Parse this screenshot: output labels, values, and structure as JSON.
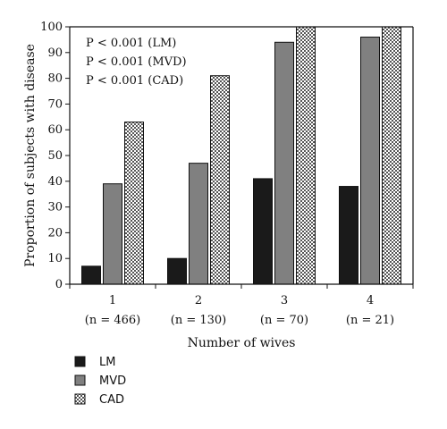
{
  "chart_data": {
    "type": "bar",
    "title": "",
    "xlabel": "Number of wives",
    "ylabel": "Proportion of subjects with disease",
    "ylim": [
      0,
      100
    ],
    "yticks": [
      0,
      10,
      20,
      30,
      40,
      50,
      60,
      70,
      80,
      90,
      100
    ],
    "grid": false,
    "legend_position": "bottom-left",
    "categories": [
      "1",
      "2",
      "3",
      "4"
    ],
    "category_sublabels": [
      "(n = 466)",
      "(n = 130)",
      "(n = 70)",
      "(n = 21)"
    ],
    "series": [
      {
        "name": "LM",
        "values": [
          7,
          10,
          41,
          38
        ],
        "color": "#1a1a1a",
        "pattern": "solid"
      },
      {
        "name": "MVD",
        "values": [
          39,
          47,
          94,
          96
        ],
        "color": "#808080",
        "pattern": "solid"
      },
      {
        "name": "CAD",
        "values": [
          63,
          81,
          100,
          100
        ],
        "color": "#ffffff",
        "pattern": "checker"
      }
    ],
    "annotations": [
      "P < 0.001 (LM)",
      "P < 0.001 (MVD)",
      "P < 0.001 (CAD)"
    ]
  }
}
